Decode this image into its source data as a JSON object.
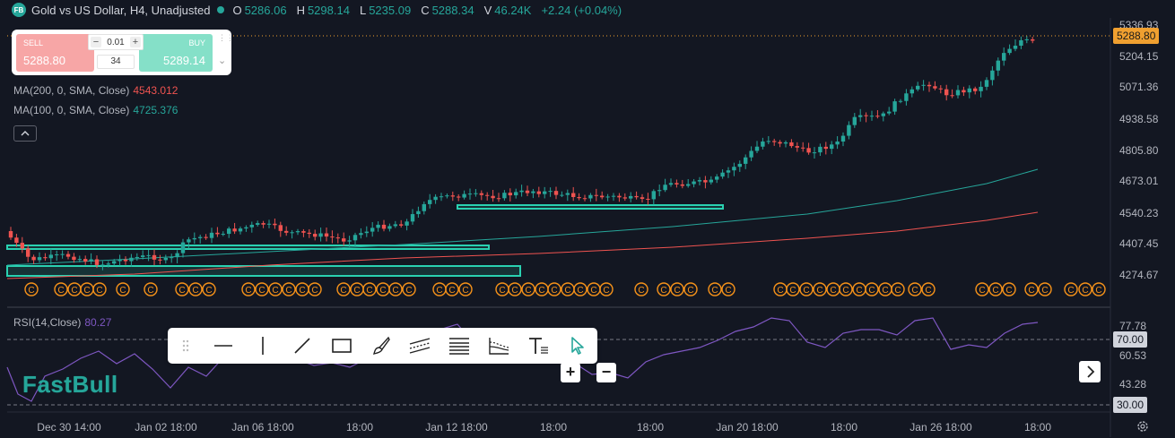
{
  "header": {
    "logo_text": "FB",
    "title": "Gold vs US Dollar, H4, Unadjusted",
    "ohlc": [
      {
        "key": "O",
        "value": "5286.06"
      },
      {
        "key": "H",
        "value": "5298.14"
      },
      {
        "key": "L",
        "value": "5235.09"
      },
      {
        "key": "C",
        "value": "5288.34"
      },
      {
        "key": "V",
        "value": "46.24K"
      }
    ],
    "change": "+2.24 (+0.04%)"
  },
  "trade": {
    "sell_label": "SELL",
    "sell_price": "5288.80",
    "buy_label": "BUY",
    "buy_price": "5289.14",
    "lot": "0.01",
    "volume": "34",
    "minus": "−",
    "plus": "+"
  },
  "indicators": {
    "ma200": {
      "label": "MA(200, 0, SMA, Close)",
      "value": "4543.012",
      "color": "#ef5350"
    },
    "ma100": {
      "label": "MA(100, 0, SMA, Close)",
      "value": "4725.376",
      "color": "#26a69a"
    },
    "rsi": {
      "label": "RSI(14,Close)",
      "value": "80.27",
      "color": "#7e57c2"
    }
  },
  "price_axis": {
    "ticks": [
      "5336.93",
      "5204.15",
      "5071.36",
      "4938.58",
      "4805.80",
      "4673.01",
      "4540.23",
      "4407.45",
      "4274.67"
    ],
    "current_price": "5288.80",
    "current_color": "#f0a030"
  },
  "rsi_axis": {
    "ticks": [
      "77.78",
      "60.53",
      "43.28"
    ],
    "tag_high": "70.00",
    "tag_low": "30.00"
  },
  "time_axis": {
    "labels": [
      "Dec 30 14:00",
      "Jan 02 18:00",
      "Jan 06 18:00",
      "18:00",
      "Jan 12 18:00",
      "18:00",
      "18:00",
      "Jan 20 18:00",
      "18:00",
      "Jan 26 18:00",
      "18:00"
    ]
  },
  "events": {
    "marker_letter": "C"
  },
  "toolbar": {
    "tools": [
      "drag-handle",
      "horizontal-line",
      "vertical-line",
      "trend-line",
      "rectangle",
      "brush",
      "parallel-channel",
      "fibonacci",
      "gann-fan",
      "text",
      "pointer"
    ]
  },
  "watermark": "FastBull",
  "zoom": {
    "in": "+",
    "out": "−"
  },
  "colors": {
    "up": "#26a69a",
    "down": "#ef5350",
    "background": "#131722",
    "event_marker": "#f7931a",
    "zone": "#2ad1b1"
  }
}
